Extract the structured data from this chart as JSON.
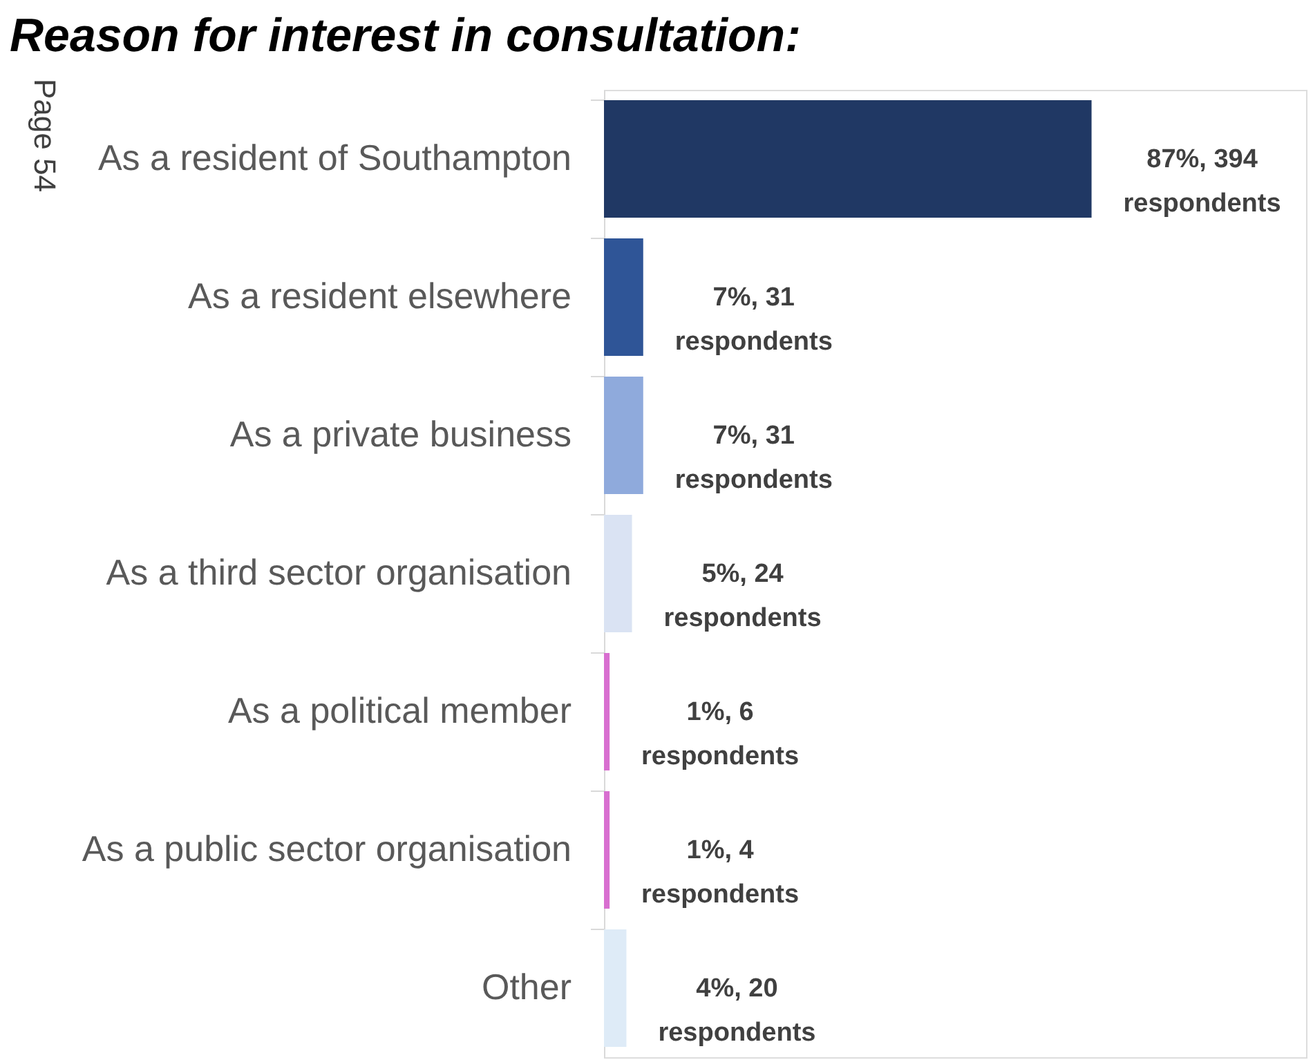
{
  "chart_data": {
    "type": "bar",
    "orientation": "horizontal",
    "title": "Reason for interest in consultation:",
    "categories": [
      "As a resident of Southampton",
      "As a resident elsewhere",
      "As a private business",
      "As a third sector organisation",
      "As a political member",
      "As a public sector organisation",
      "Other"
    ],
    "values": [
      87,
      7,
      7,
      5,
      1,
      1,
      4
    ],
    "colors": [
      "#203864",
      "#2f5597",
      "#8faadc",
      "#dae3f3",
      "#d86fd0",
      "#d86fd0",
      "#deebf7"
    ],
    "value_labels": [
      "87%, 394 respondents",
      "7%, 31 respondents",
      "7%, 31 respondents",
      "5%, 24 respondents",
      "1%, 6 respondents",
      "1%, 4 respondents",
      "4%, 20 respondents"
    ],
    "annotations": [
      "Page 54"
    ],
    "grid": false
  }
}
